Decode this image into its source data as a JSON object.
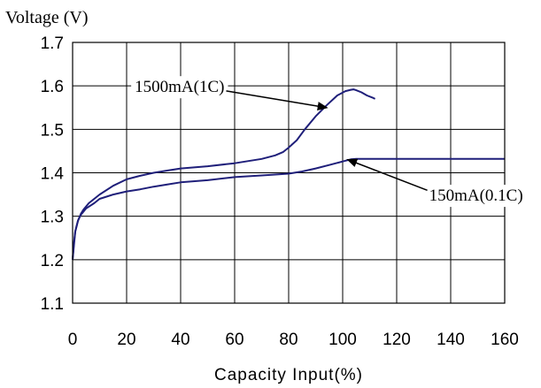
{
  "chart_data": {
    "type": "line",
    "title": "",
    "ylabel": "Voltage (V)",
    "xlabel": "Capacity Input(%)",
    "xlim": [
      0,
      160
    ],
    "ylim": [
      1.1,
      1.7
    ],
    "x_ticks": [
      "0",
      "20",
      "40",
      "60",
      "80",
      "100",
      "120",
      "140",
      "160"
    ],
    "y_ticks": [
      "1.7",
      "1.6",
      "1.5",
      "1.4",
      "1.3",
      "1.2",
      "1.1"
    ],
    "grid": true,
    "series": [
      {
        "name": "1500mA(1C)",
        "color": "#1f1f7a",
        "x": [
          0,
          1,
          2,
          3,
          4,
          6,
          8,
          10,
          15,
          20,
          25,
          30,
          35,
          40,
          50,
          60,
          70,
          75,
          78,
          80,
          83,
          86,
          90,
          94,
          98,
          101,
          103,
          104,
          105,
          107,
          109,
          111,
          112
        ],
        "y": [
          1.2,
          1.265,
          1.29,
          1.305,
          1.315,
          1.33,
          1.34,
          1.35,
          1.37,
          1.385,
          1.393,
          1.4,
          1.405,
          1.41,
          1.415,
          1.422,
          1.432,
          1.44,
          1.448,
          1.458,
          1.475,
          1.5,
          1.53,
          1.555,
          1.578,
          1.588,
          1.591,
          1.592,
          1.59,
          1.585,
          1.578,
          1.573,
          1.57
        ]
      },
      {
        "name": "150mA(0.1C)",
        "color": "#1f1f7a",
        "x": [
          0,
          0.5,
          1,
          2,
          3,
          5,
          8,
          10,
          15,
          20,
          25,
          30,
          35,
          40,
          50,
          60,
          70,
          80,
          85,
          90,
          95,
          100,
          103,
          105,
          110,
          120,
          130,
          140,
          150,
          160
        ],
        "y": [
          1.2,
          1.24,
          1.265,
          1.29,
          1.303,
          1.318,
          1.33,
          1.34,
          1.35,
          1.357,
          1.362,
          1.368,
          1.373,
          1.378,
          1.383,
          1.39,
          1.394,
          1.398,
          1.403,
          1.41,
          1.418,
          1.426,
          1.431,
          1.432,
          1.432,
          1.432,
          1.432,
          1.432,
          1.432,
          1.432
        ]
      }
    ],
    "annotations": [
      {
        "text": "1500mA(1C)",
        "target_x": 94,
        "target_y": 1.55,
        "label_x": 23,
        "label_y": 1.6
      },
      {
        "text": "150mA(0.1C)",
        "target_x": 102,
        "target_y": 1.43,
        "label_x": 132,
        "label_y": 1.35
      }
    ]
  }
}
